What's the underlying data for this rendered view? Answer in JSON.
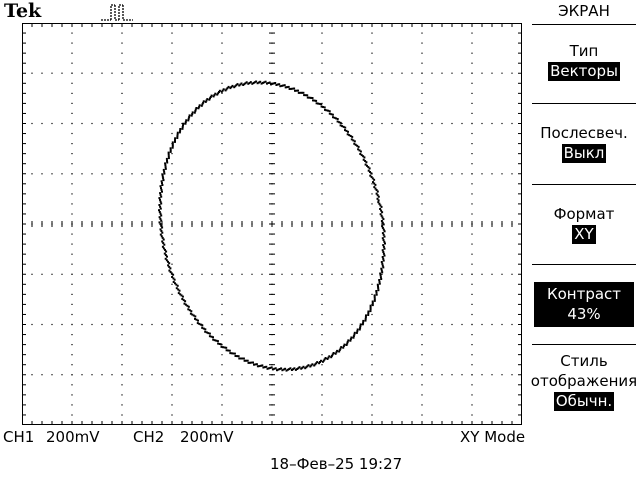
{
  "header": {
    "brand": "Tek",
    "trigger_icon": "pulse-waveform-icon"
  },
  "screen": {
    "divisions_x": 10,
    "divisions_y": 8,
    "trace_color": "#000000",
    "mode": "XY",
    "signal": {
      "type": "lissajous-ellipse"
    }
  },
  "status": {
    "ch1": "CH1",
    "ch1_scale": "200mV",
    "ch2": "CH2",
    "ch2_scale": "200mV",
    "mode": "XY Mode",
    "datetime": "18–Фев–25 19:27"
  },
  "menu": {
    "title": "ЭКРАН",
    "items": [
      {
        "label": "Тип",
        "value": "Векторы"
      },
      {
        "label": "Послесвеч.",
        "value": "Выкл"
      },
      {
        "label": "Формат",
        "value": "XY"
      },
      {
        "label": "Контраст",
        "value": "43%"
      },
      {
        "label": "Стиль",
        "label2": "отображения",
        "value": "Обычн."
      }
    ]
  }
}
